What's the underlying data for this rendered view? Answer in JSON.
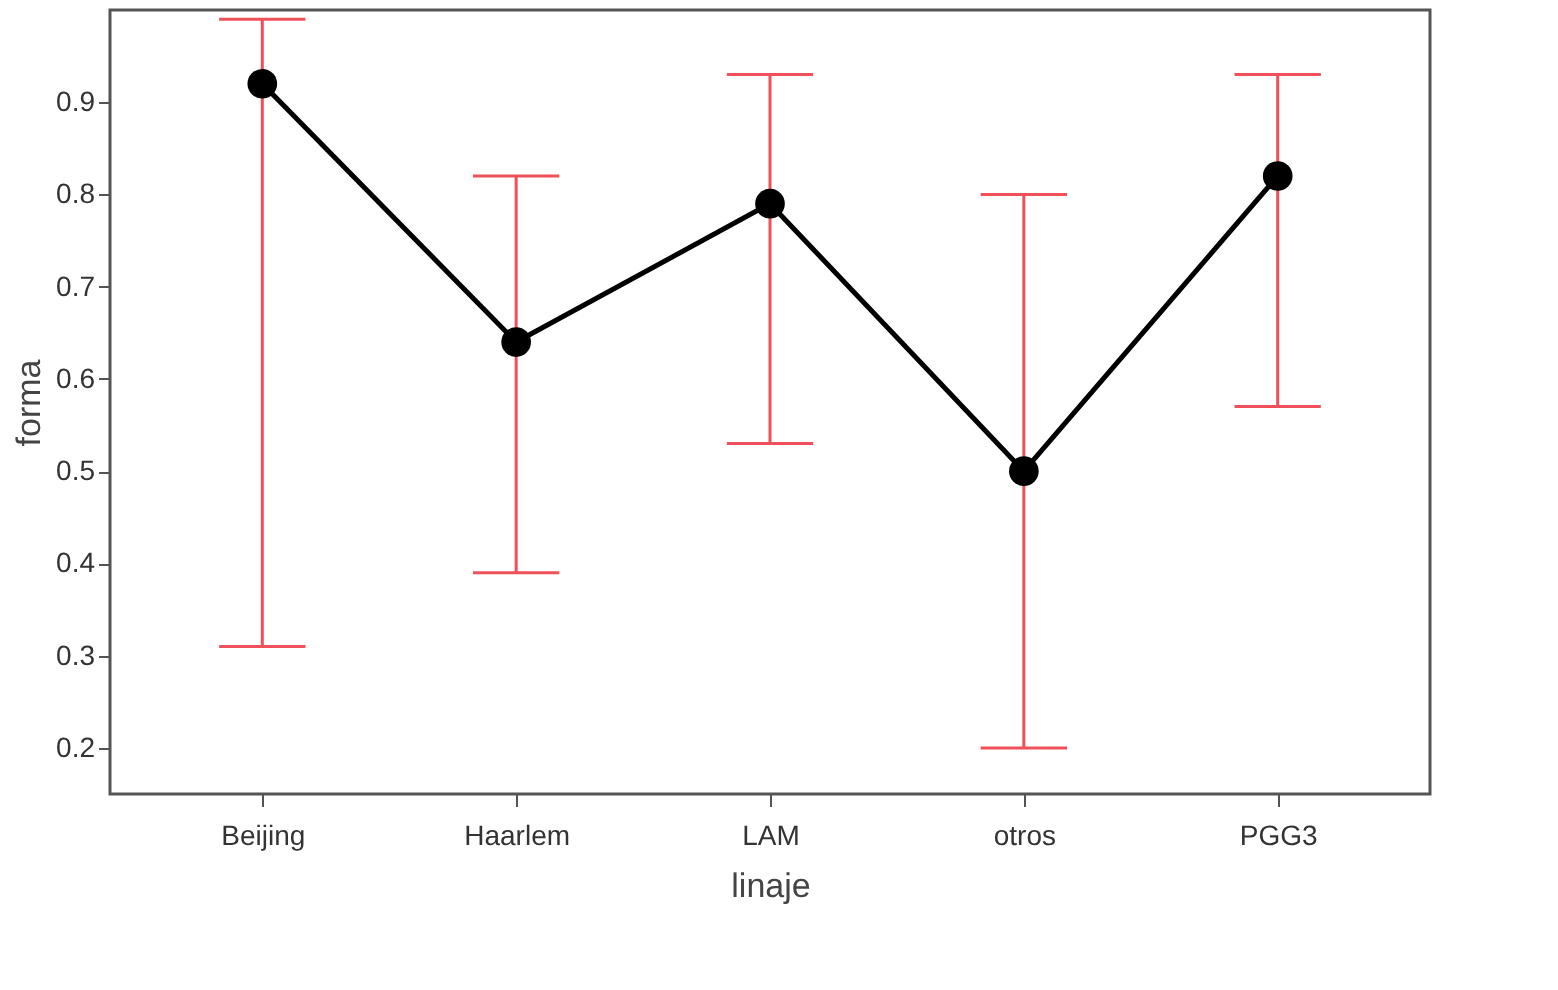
{
  "chart_data": {
    "type": "line",
    "xlabel": "linaje",
    "ylabel": "forma",
    "categories": [
      "Beijing",
      "Haarlem",
      "LAM",
      "otros",
      "PGG3"
    ],
    "series": [
      {
        "color": "#000000",
        "values": [
          0.92,
          0.64,
          0.79,
          0.5,
          0.82
        ],
        "errors": [
          [
            0.31,
            0.99
          ],
          [
            0.39,
            0.82
          ],
          [
            0.53,
            0.93
          ],
          [
            0.2,
            0.8
          ],
          [
            0.57,
            0.93
          ]
        ]
      }
    ],
    "ylim": [
      0.15,
      1.0
    ],
    "yticks": [
      0.2,
      0.3,
      0.4,
      0.5,
      0.6,
      0.7,
      0.8,
      0.9
    ],
    "marker": "circle",
    "line_style": "solid",
    "grid": false
  }
}
